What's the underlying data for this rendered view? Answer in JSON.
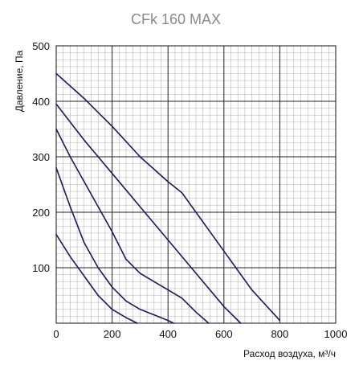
{
  "chart_data": {
    "type": "line",
    "title": "CFk 160 MAX",
    "xlabel": "Расход воздуха, м³/ч",
    "ylabel": "Давление, Па",
    "xlim": [
      0,
      1000
    ],
    "ylim": [
      0,
      500
    ],
    "x_ticks": [
      "0",
      "200",
      "400",
      "600",
      "800",
      "1000"
    ],
    "y_ticks": [
      "100",
      "200",
      "300",
      "400",
      "500"
    ],
    "grid": true,
    "line_color": "#1a1a5e",
    "series": [
      {
        "points": [
          [
            0,
            450
          ],
          [
            100,
            405
          ],
          [
            200,
            355
          ],
          [
            300,
            300
          ],
          [
            400,
            255
          ],
          [
            450,
            235
          ],
          [
            500,
            200
          ],
          [
            600,
            130
          ],
          [
            700,
            60
          ],
          [
            800,
            5
          ]
        ]
      },
      {
        "points": [
          [
            0,
            395
          ],
          [
            100,
            330
          ],
          [
            200,
            270
          ],
          [
            300,
            210
          ],
          [
            400,
            150
          ],
          [
            500,
            90
          ],
          [
            600,
            30
          ],
          [
            660,
            0
          ]
        ]
      },
      {
        "points": [
          [
            0,
            350
          ],
          [
            50,
            300
          ],
          [
            100,
            255
          ],
          [
            150,
            210
          ],
          [
            200,
            165
          ],
          [
            250,
            115
          ],
          [
            300,
            90
          ],
          [
            350,
            75
          ],
          [
            400,
            60
          ],
          [
            450,
            45
          ],
          [
            500,
            20
          ],
          [
            545,
            0
          ]
        ]
      },
      {
        "points": [
          [
            0,
            280
          ],
          [
            50,
            210
          ],
          [
            100,
            145
          ],
          [
            150,
            100
          ],
          [
            200,
            65
          ],
          [
            250,
            40
          ],
          [
            300,
            25
          ],
          [
            350,
            15
          ],
          [
            400,
            5
          ],
          [
            420,
            0
          ]
        ]
      },
      {
        "points": [
          [
            0,
            160
          ],
          [
            50,
            120
          ],
          [
            100,
            85
          ],
          [
            150,
            50
          ],
          [
            200,
            25
          ],
          [
            250,
            10
          ],
          [
            290,
            0
          ]
        ]
      }
    ]
  }
}
